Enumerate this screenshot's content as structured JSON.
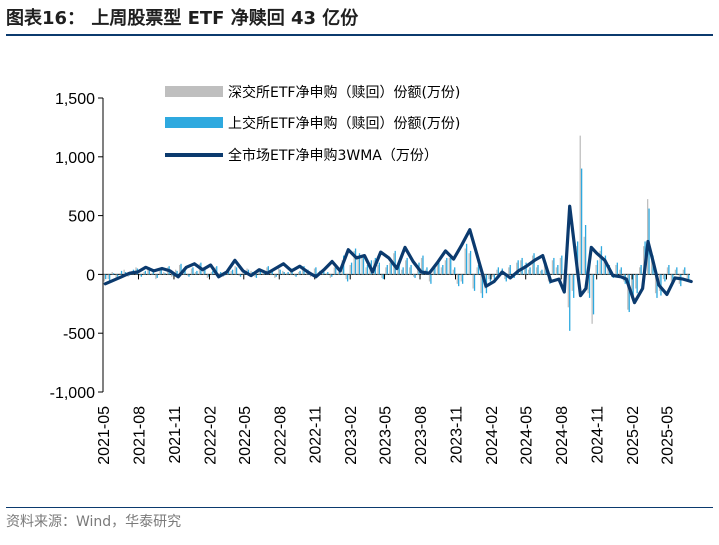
{
  "title": "图表16：   上周股票型 ETF 净赎回 43 亿份",
  "source": "资料来源：Wind，华泰研究",
  "chart_data": {
    "type": "bar+line",
    "title": "",
    "ylim": [
      -1000,
      1500
    ],
    "yticks": [
      -1000,
      -500,
      0,
      500,
      1000,
      1500
    ],
    "ytick_labels": [
      "-1,000",
      "-500",
      "0",
      "500",
      "1,000",
      "1,500"
    ],
    "x_range": [
      "2021-05",
      "2025-07"
    ],
    "xtick_labels": [
      "2021-05",
      "2021-08",
      "2021-11",
      "2022-02",
      "2022-05",
      "2022-08",
      "2022-11",
      "2023-02",
      "2023-05",
      "2023-08",
      "2023-11",
      "2024-02",
      "2024-05",
      "2024-08",
      "2024-11",
      "2025-02",
      "2025-05"
    ],
    "legend": {
      "placement": "top-center"
    },
    "series": [
      {
        "name": "深交所ETF净申购（赎回）份额(万份)",
        "kind": "bar",
        "color": "#bfbfbf",
        "values": [
          -60,
          -40,
          20,
          -30,
          10,
          40,
          -20,
          30,
          60,
          -10,
          20,
          50,
          10,
          -40,
          30,
          20,
          60,
          -20,
          40,
          80,
          30,
          -10,
          50,
          20,
          90,
          40,
          -30,
          20,
          60,
          10,
          -20,
          40,
          30,
          70,
          -10,
          20,
          50,
          30,
          -20,
          40,
          10,
          60,
          20,
          -30,
          50,
          30,
          10,
          40,
          -10,
          20,
          60,
          30,
          -20,
          50,
          20,
          40,
          10,
          -30,
          60,
          20,
          120,
          -40,
          80,
          200,
          160,
          140,
          60,
          100,
          120,
          80,
          -30,
          60,
          100,
          180,
          80,
          40,
          120,
          60,
          -20,
          80,
          140,
          40,
          -60,
          40,
          100,
          60,
          120,
          140,
          40,
          -80,
          -60,
          220,
          180,
          -120,
          60,
          -160,
          -120,
          -40,
          -20,
          40,
          30,
          -40,
          60,
          -20,
          100,
          120,
          80,
          40,
          160,
          60,
          30,
          80,
          -60,
          120,
          60,
          140,
          40,
          -280,
          -140,
          240,
          1180,
          320,
          -160,
          -420,
          80,
          200,
          120,
          60,
          -20,
          80,
          40,
          -60,
          -300,
          -180,
          -120,
          60,
          240,
          640,
          120,
          -160,
          -140,
          -40,
          60,
          -60,
          40,
          -80,
          40,
          -40
        ]
      },
      {
        "name": "上交所ETF净申购（赎回）份额(万份)",
        "kind": "bar",
        "color": "#2ea9df",
        "values": [
          -40,
          -60,
          10,
          -20,
          30,
          20,
          -10,
          40,
          50,
          -20,
          30,
          60,
          20,
          -30,
          40,
          10,
          70,
          -10,
          30,
          90,
          40,
          -20,
          60,
          30,
          100,
          50,
          -20,
          30,
          70,
          20,
          -10,
          50,
          40,
          60,
          -20,
          30,
          40,
          20,
          -30,
          50,
          20,
          70,
          30,
          -20,
          40,
          20,
          20,
          50,
          -20,
          30,
          70,
          40,
          -10,
          60,
          30,
          50,
          20,
          -20,
          70,
          30,
          160,
          -60,
          100,
          220,
          180,
          160,
          80,
          120,
          140,
          100,
          -40,
          80,
          120,
          200,
          100,
          60,
          140,
          80,
          -30,
          100,
          160,
          60,
          -80,
          60,
          120,
          80,
          140,
          160,
          60,
          -100,
          -80,
          260,
          200,
          -140,
          80,
          -200,
          -160,
          -60,
          -40,
          60,
          50,
          -60,
          80,
          -30,
          120,
          140,
          100,
          60,
          180,
          80,
          40,
          100,
          -80,
          140,
          80,
          160,
          60,
          -480,
          -200,
          280,
          900,
          420,
          -200,
          -340,
          120,
          240,
          160,
          80,
          -30,
          100,
          60,
          -80,
          -320,
          -220,
          -160,
          80,
          280,
          560,
          160,
          -200,
          -180,
          -60,
          80,
          -80,
          60,
          -100,
          60,
          -60
        ]
      },
      {
        "name": "全市场ETF净申购3WMA（万份）",
        "kind": "line",
        "color": "#0b3a6e",
        "x": [
          "2021-05-07",
          "2021-05-28",
          "2021-06-18",
          "2021-07-09",
          "2021-07-30",
          "2021-08-20",
          "2021-09-10",
          "2021-10-01",
          "2021-10-22",
          "2021-11-12",
          "2021-12-03",
          "2021-12-24",
          "2022-01-14",
          "2022-02-04",
          "2022-02-25",
          "2022-03-18",
          "2022-04-08",
          "2022-04-29",
          "2022-05-20",
          "2022-06-10",
          "2022-07-01",
          "2022-07-22",
          "2022-08-12",
          "2022-09-02",
          "2022-09-23",
          "2022-10-14",
          "2022-11-04",
          "2022-11-25",
          "2022-12-16",
          "2023-01-06",
          "2023-01-27",
          "2023-02-17",
          "2023-03-10",
          "2023-03-31",
          "2023-04-21",
          "2023-05-12",
          "2023-06-02",
          "2023-06-23",
          "2023-07-14",
          "2023-08-04",
          "2023-08-25",
          "2023-09-15",
          "2023-10-06",
          "2023-10-27",
          "2023-11-17",
          "2023-12-08",
          "2023-12-29",
          "2024-01-19",
          "2024-02-09",
          "2024-03-01",
          "2024-03-22",
          "2024-04-12",
          "2024-05-03",
          "2024-05-24",
          "2024-06-14",
          "2024-07-05",
          "2024-07-26",
          "2024-08-09",
          "2024-08-23",
          "2024-09-06",
          "2024-09-20",
          "2024-10-04",
          "2024-10-18",
          "2024-11-01",
          "2024-11-22",
          "2024-12-13",
          "2025-01-03",
          "2025-01-17",
          "2025-02-07",
          "2025-02-28",
          "2025-03-14",
          "2025-03-28",
          "2025-04-11",
          "2025-05-02",
          "2025-05-23",
          "2025-06-13",
          "2025-07-04"
        ],
        "values": [
          -80,
          -50,
          -20,
          10,
          20,
          60,
          30,
          50,
          30,
          -20,
          60,
          90,
          40,
          80,
          -20,
          20,
          120,
          30,
          -10,
          40,
          10,
          50,
          90,
          30,
          70,
          20,
          -20,
          40,
          110,
          30,
          210,
          140,
          160,
          20,
          190,
          140,
          50,
          230,
          110,
          20,
          10,
          100,
          200,
          130,
          250,
          380,
          140,
          -100,
          -60,
          20,
          -30,
          30,
          70,
          120,
          160,
          -60,
          -40,
          -150,
          580,
          200,
          -180,
          -120,
          230,
          180,
          120,
          -10,
          -20,
          -40,
          -240,
          -120,
          280,
          100,
          -90,
          -170,
          -30,
          -40,
          -60
        ]
      }
    ]
  }
}
